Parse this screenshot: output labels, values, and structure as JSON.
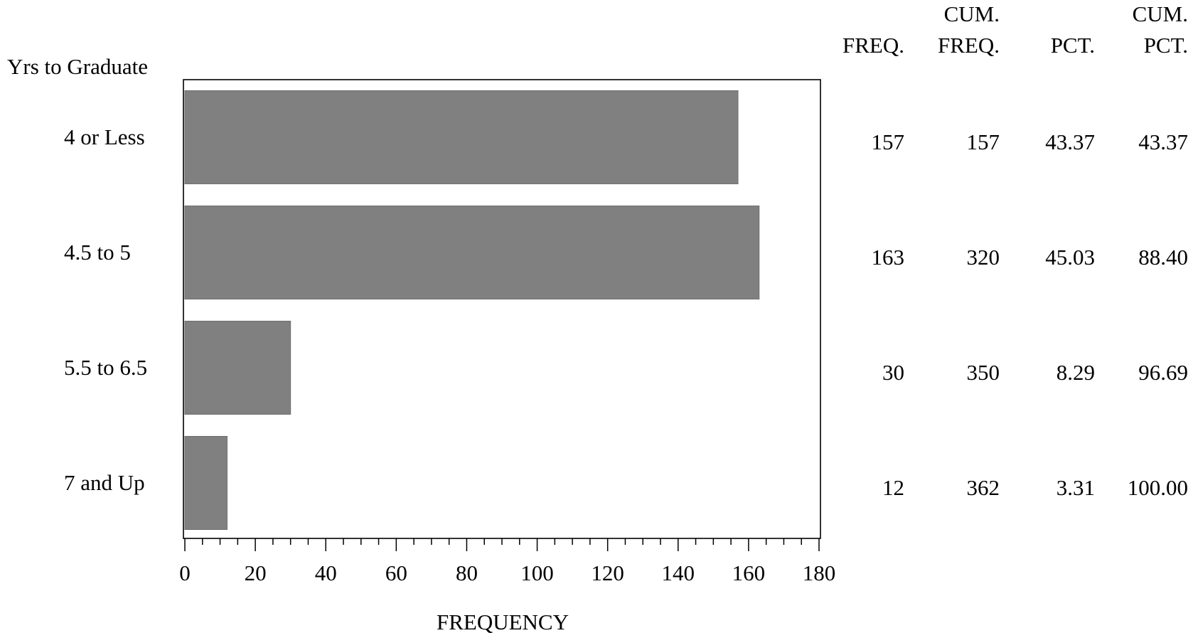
{
  "chart_data": {
    "type": "bar",
    "orientation": "horizontal",
    "category_axis_label": "Yrs to Graduate",
    "categories": [
      "4 or Less",
      "4.5 to 5",
      "5.5 to 6.5",
      "7 and Up"
    ],
    "values": [
      157,
      163,
      30,
      12
    ],
    "xlabel": "FREQUENCY",
    "xlim": [
      0,
      180
    ],
    "x_ticks": [
      "0",
      "20",
      "40",
      "60",
      "80",
      "100",
      "120",
      "140",
      "160",
      "180"
    ],
    "x_minor_tick_step": 5,
    "bar_color": "#808080",
    "grid": false,
    "table": {
      "headers": [
        {
          "line1": "",
          "line2": "FREQ."
        },
        {
          "line1": "CUM.",
          "line2": "FREQ."
        },
        {
          "line1": "",
          "line2": "PCT."
        },
        {
          "line1": "CUM.",
          "line2": "PCT."
        }
      ],
      "rows": [
        [
          "157",
          "157",
          "43.37",
          "43.37"
        ],
        [
          "163",
          "320",
          "45.03",
          "88.40"
        ],
        [
          "30",
          "350",
          "8.29",
          "96.69"
        ],
        [
          "12",
          "362",
          "3.31",
          "100.00"
        ]
      ]
    }
  }
}
